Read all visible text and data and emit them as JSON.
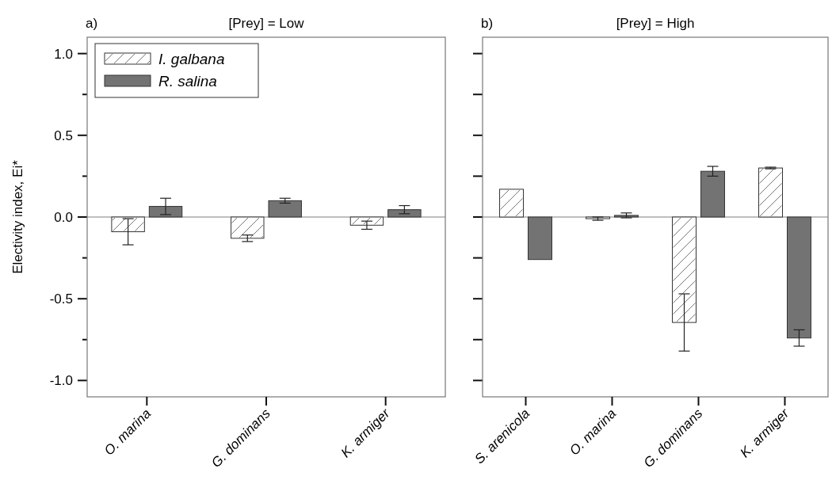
{
  "chart_data": [
    {
      "type": "bar",
      "title": "[Prey] = Low",
      "annotations": [
        "a)"
      ],
      "ylabel": "Electivity index, Ei*",
      "categories": [
        "O. marina",
        "G. dominans",
        "K. armiger"
      ],
      "series": [
        {
          "name": "I. galbana",
          "color": "#ffffff",
          "values": [
            -0.09,
            -0.13,
            -0.05
          ],
          "errors": [
            0.08,
            0.02,
            0.025
          ]
        },
        {
          "name": "R. salina",
          "color": "#737373",
          "values": [
            0.065,
            0.1,
            0.045
          ],
          "errors": [
            0.05,
            0.015,
            0.025
          ]
        }
      ],
      "ylim": [
        -1.1,
        1.1
      ],
      "yticks": [
        {
          "value": -1,
          "label": "-1.0"
        },
        {
          "value": -0.75,
          "label": null
        },
        {
          "value": -0.5,
          "label": "-0.5"
        },
        {
          "value": -0.25,
          "label": null
        },
        {
          "value": 0,
          "label": "0.0"
        },
        {
          "value": 0.25,
          "label": null
        },
        {
          "value": 0.5,
          "label": "0.5"
        },
        {
          "value": 0.75,
          "label": null
        },
        {
          "value": 1,
          "label": "1.0"
        }
      ],
      "ref_lines": [
        {
          "axis": "y",
          "value": 0,
          "color": "#808080"
        }
      ],
      "legend": "top left"
    },
    {
      "type": "bar",
      "title": "[Prey] = High",
      "annotations": [
        "b)"
      ],
      "categories": [
        "S. arenicola",
        "O. marina",
        "G. dominans",
        "K. armiger"
      ],
      "series": [
        {
          "color": "#ffffff",
          "values": [
            0.17,
            -0.01,
            -0.645,
            0.3
          ],
          "errors": [
            null,
            0.01,
            0.175,
            0.005
          ]
        },
        {
          "color": "#737373",
          "values": [
            -0.26,
            0.01,
            0.28,
            -0.74
          ],
          "errors": [
            null,
            0.015,
            0.03,
            0.05
          ]
        }
      ],
      "ylim": [
        -1.1,
        1.1
      ],
      "yticks": [
        {
          "value": -1,
          "label": null
        },
        {
          "value": -0.75,
          "label": null
        },
        {
          "value": -0.5,
          "label": null
        },
        {
          "value": -0.25,
          "label": null
        },
        {
          "value": 0,
          "label": null
        },
        {
          "value": 0.25,
          "label": null
        },
        {
          "value": 0.5,
          "label": null
        },
        {
          "value": 0.75,
          "label": null
        },
        {
          "value": 1,
          "label": null
        }
      ],
      "ref_lines": [
        {
          "axis": "y",
          "value": 0,
          "color": "#808080"
        }
      ],
      "tick_labels": "x",
      "legend": false
    }
  ]
}
